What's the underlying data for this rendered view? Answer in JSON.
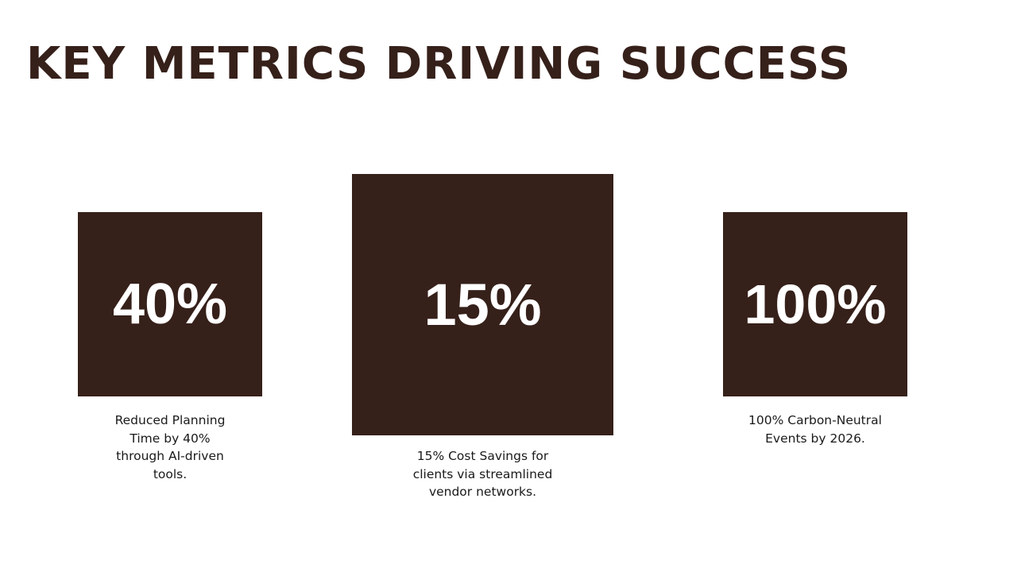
{
  "slide": {
    "title": "KEY METRICS DRIVING SUCCESS",
    "colors": {
      "accent": "#36201a",
      "background": "#ffffff",
      "metric_text": "#ffffff"
    },
    "metrics": [
      {
        "value": "40%",
        "caption": "Reduced Planning Time by 40% through AI-driven tools."
      },
      {
        "value": "15%",
        "caption": "15% Cost Savings for clients via streamlined vendor networks."
      },
      {
        "value": "100%",
        "caption": "100% Carbon-Neutral Events by 2026."
      }
    ]
  }
}
